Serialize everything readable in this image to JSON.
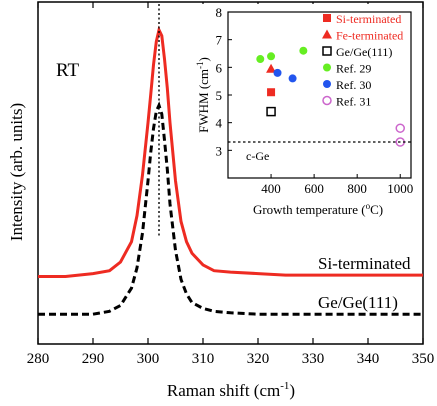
{
  "chart_data": [
    {
      "type": "line",
      "annotation": "RT",
      "xlabel": "Raman shift (cm",
      "xlabel_sup": "-1",
      "xlabel_end": ")",
      "ylabel": "Intensity (arb. units)",
      "xlim": [
        280,
        350
      ],
      "x_ticks": [
        280,
        290,
        300,
        310,
        320,
        330,
        340,
        350
      ],
      "y_ticks": [],
      "grid": false,
      "peak_marker_x": 302,
      "series": [
        {
          "name": "Si-terminated",
          "color": "#ee2b22",
          "style": "solid",
          "x": [
            280,
            285,
            290,
            293,
            295,
            297,
            298,
            299,
            300,
            300.5,
            301,
            301.5,
            302,
            302.5,
            303,
            303.5,
            304,
            305,
            306,
            307,
            308,
            310,
            312,
            315,
            320,
            325,
            330,
            340,
            350
          ],
          "y": [
            0.15,
            0.15,
            0.16,
            0.17,
            0.2,
            0.27,
            0.36,
            0.5,
            0.68,
            0.78,
            0.88,
            0.96,
            1.0,
            0.98,
            0.9,
            0.8,
            0.68,
            0.48,
            0.34,
            0.27,
            0.23,
            0.19,
            0.17,
            0.165,
            0.16,
            0.155,
            0.155,
            0.155,
            0.155
          ]
        },
        {
          "name": "Ge/Ge(111)",
          "color": "#000000",
          "style": "dashed",
          "x": [
            280,
            285,
            290,
            293,
            295,
            297,
            298,
            299,
            300,
            300.5,
            301,
            301.5,
            302,
            302.5,
            303,
            303.5,
            304,
            305,
            306,
            307,
            308,
            310,
            312,
            315,
            320,
            325,
            330,
            340,
            350
          ],
          "y": [
            0.02,
            0.02,
            0.02,
            0.03,
            0.05,
            0.11,
            0.18,
            0.3,
            0.48,
            0.58,
            0.66,
            0.72,
            0.74,
            0.71,
            0.62,
            0.52,
            0.4,
            0.24,
            0.14,
            0.09,
            0.06,
            0.04,
            0.03,
            0.025,
            0.02,
            0.02,
            0.02,
            0.02,
            0.02
          ]
        }
      ]
    },
    {
      "type": "scatter",
      "xlabel": "Growth temperature (",
      "xlabel_sup": "o",
      "xlabel_end": "C)",
      "ylabel": "FWHM (cm",
      "ylabel_sup": "-1",
      "ylabel_end": ")",
      "xlim": [
        200,
        1050
      ],
      "ylim": [
        2,
        8
      ],
      "x_ticks": [
        400,
        600,
        800,
        1000
      ],
      "y_ticks": [
        3,
        4,
        5,
        6,
        7,
        8
      ],
      "grid": false,
      "legend": "right",
      "reference_line": {
        "label": "c-Ge",
        "y": 3.3
      },
      "series": [
        {
          "name": "Si-terminated",
          "color": "#ee2b22",
          "marker": "square-filled",
          "points": [
            [
              400,
              5.1
            ]
          ]
        },
        {
          "name": "Fe-terminated",
          "color": "#ee2b22",
          "marker": "triangle-filled",
          "points": [
            [
              400,
              5.95
            ]
          ]
        },
        {
          "name": "Ge/Ge(111)",
          "color": "#000000",
          "marker": "square-open",
          "points": [
            [
              400,
              4.4
            ]
          ]
        },
        {
          "name": "Ref. 29",
          "color": "#66ee22",
          "marker": "circle-filled",
          "points": [
            [
              350,
              6.3
            ],
            [
              400,
              6.4
            ],
            [
              550,
              6.6
            ]
          ]
        },
        {
          "name": "Ref. 30",
          "color": "#2255ee",
          "marker": "circle-filled",
          "points": [
            [
              430,
              5.8
            ],
            [
              500,
              5.6
            ]
          ]
        },
        {
          "name": "Ref. 31",
          "color": "#cc66cc",
          "marker": "circle-open",
          "points": [
            [
              1000,
              3.8
            ],
            [
              1000,
              3.3
            ]
          ]
        }
      ]
    }
  ]
}
